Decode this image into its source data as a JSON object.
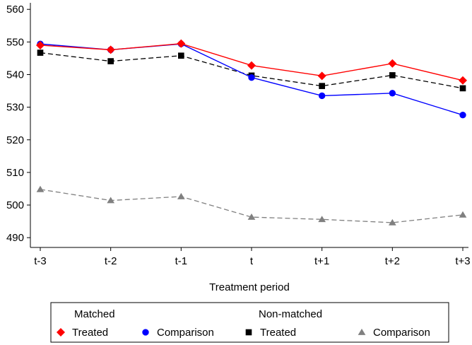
{
  "chart_data": {
    "type": "line",
    "title": "",
    "xlabel": "Treatment period",
    "ylabel": "",
    "categories": [
      "t-3",
      "t-2",
      "t-1",
      "t",
      "t+1",
      "t+2",
      "t+3"
    ],
    "ylim": [
      487,
      562
    ],
    "yticks": [
      490,
      500,
      510,
      520,
      530,
      540,
      550,
      560
    ],
    "grid": false,
    "legend_position": "bottom",
    "legend_groups": [
      "Matched",
      "Non-matched"
    ],
    "series": [
      {
        "name": "Treated",
        "group": "Matched",
        "color": "#ff0000",
        "marker": "diamond",
        "line_style": "solid",
        "values": [
          549.0,
          547.6,
          549.5,
          542.8,
          539.6,
          543.4,
          538.2
        ]
      },
      {
        "name": "Comparison",
        "group": "Matched",
        "color": "#0000ff",
        "marker": "circle",
        "line_style": "solid",
        "values": [
          549.4,
          547.6,
          549.4,
          539.1,
          533.5,
          534.3,
          527.6
        ]
      },
      {
        "name": "Treated",
        "group": "Non-matched",
        "color": "#000000",
        "marker": "square",
        "line_style": "dashed",
        "values": [
          546.7,
          544.1,
          545.8,
          539.7,
          536.5,
          539.8,
          535.8
        ]
      },
      {
        "name": "Comparison",
        "group": "Non-matched",
        "color": "#808080",
        "marker": "triangle",
        "line_style": "dashed",
        "values": [
          504.8,
          501.4,
          502.6,
          496.3,
          495.6,
          494.6,
          497.0
        ]
      }
    ]
  }
}
